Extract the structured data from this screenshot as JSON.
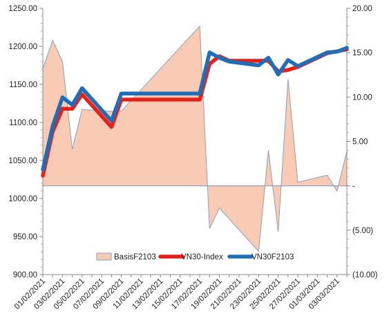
{
  "chart_data": {
    "type": "line",
    "title": "",
    "xlabel": "",
    "ylabel": "",
    "x": [
      "01/02/2021",
      "02/02/2021",
      "03/02/2021",
      "04/02/2021",
      "05/02/2021",
      "06/02/2021",
      "07/02/2021",
      "08/02/2021",
      "09/02/2021",
      "10/02/2021",
      "11/02/2021",
      "12/02/2021",
      "13/02/2021",
      "14/02/2021",
      "15/02/2021",
      "16/02/2021",
      "17/02/2021",
      "18/02/2021",
      "19/02/2021",
      "20/02/2021",
      "21/02/2021",
      "22/02/2021",
      "23/02/2021",
      "24/02/2021",
      "25/02/2021",
      "26/02/2021",
      "27/02/2021",
      "28/02/2021",
      "01/03/2021",
      "02/03/2021",
      "03/03/2021"
    ],
    "x_tick_labels": [
      "01/02/2021",
      "03/02/2021",
      "05/02/2021",
      "07/02/2021",
      "09/02/2021",
      "11/02/2021",
      "13/02/2021",
      "15/02/2021",
      "17/02/2021",
      "19/02/2021",
      "21/02/2021",
      "23/02/2021",
      "25/02/2021",
      "27/02/2021",
      "01/03/2021",
      "03/03/2021"
    ],
    "y_left": {
      "ylim": [
        900,
        1250
      ],
      "ticks": [
        "1250.00",
        "1200.00",
        "1150.00",
        "1100.00",
        "1050.00",
        "1000.00",
        "950.00",
        "900.00"
      ],
      "tick_values": [
        1250,
        1200,
        1150,
        1100,
        1050,
        1000,
        950,
        900
      ]
    },
    "y_right": {
      "ylim": [
        -10,
        20
      ],
      "ticks": [
        "20.00",
        "15.00",
        "10.00",
        "5.00",
        "-",
        "(5.00)",
        "(10.00)"
      ],
      "tick_values": [
        20,
        15,
        10,
        5,
        0,
        -5,
        -10
      ]
    },
    "legend_position": "bottom-center",
    "series": [
      {
        "name": "BasisF2103",
        "type": "area",
        "axis": "right",
        "color": "#f9cbb4",
        "stroke": "#8e9db8",
        "points": [
          {
            "x": "01/02/2021",
            "y": 13.2
          },
          {
            "x": "02/02/2021",
            "y": 16.4
          },
          {
            "x": "03/02/2021",
            "y": 14.0
          },
          {
            "x": "04/02/2021",
            "y": 4.1
          },
          {
            "x": "05/02/2021",
            "y": 8.6
          },
          {
            "x": "08/02/2021",
            "y": 8.4
          },
          {
            "x": "09/02/2021",
            "y": 8.4
          },
          {
            "x": "17/02/2021",
            "y": 18.0
          },
          {
            "x": "18/02/2021",
            "y": -4.8
          },
          {
            "x": "19/02/2021",
            "y": -2.5
          },
          {
            "x": "23/02/2021",
            "y": -7.4
          },
          {
            "x": "24/02/2021",
            "y": 4.0
          },
          {
            "x": "25/02/2021",
            "y": -5.2
          },
          {
            "x": "26/02/2021",
            "y": 12.0
          },
          {
            "x": "27/02/2021",
            "y": 0.4
          },
          {
            "x": "02/03/2021",
            "y": 1.2
          },
          {
            "x": "03/03/2021",
            "y": -0.6
          },
          {
            "x": "04/03/2021",
            "y": 3.9
          }
        ]
      },
      {
        "name": "VN30-Index",
        "type": "line",
        "axis": "left",
        "color": "#e8201b",
        "points": [
          {
            "x": "01/02/2021",
            "y": 1030
          },
          {
            "x": "02/02/2021",
            "y": 1088
          },
          {
            "x": "03/02/2021",
            "y": 1118
          },
          {
            "x": "04/02/2021",
            "y": 1118
          },
          {
            "x": "05/02/2021",
            "y": 1137
          },
          {
            "x": "08/02/2021",
            "y": 1094
          },
          {
            "x": "09/02/2021",
            "y": 1130
          },
          {
            "x": "17/02/2021",
            "y": 1130
          },
          {
            "x": "18/02/2021",
            "y": 1177
          },
          {
            "x": "19/02/2021",
            "y": 1187
          },
          {
            "x": "20/02/2021",
            "y": 1181
          },
          {
            "x": "24/02/2021",
            "y": 1181
          },
          {
            "x": "25/02/2021",
            "y": 1167
          },
          {
            "x": "26/02/2021",
            "y": 1169
          },
          {
            "x": "27/02/2021",
            "y": 1173
          },
          {
            "x": "02/03/2021",
            "y": 1191
          },
          {
            "x": "04/03/2021",
            "y": 1196
          }
        ]
      },
      {
        "name": "VN30F2103",
        "type": "line",
        "axis": "left",
        "color": "#1f6fb8",
        "points": [
          {
            "x": "01/02/2021",
            "y": 1038
          },
          {
            "x": "02/02/2021",
            "y": 1095
          },
          {
            "x": "03/02/2021",
            "y": 1133
          },
          {
            "x": "04/02/2021",
            "y": 1123
          },
          {
            "x": "05/02/2021",
            "y": 1145
          },
          {
            "x": "08/02/2021",
            "y": 1102
          },
          {
            "x": "09/02/2021",
            "y": 1138
          },
          {
            "x": "17/02/2021",
            "y": 1138
          },
          {
            "x": "18/02/2021",
            "y": 1192
          },
          {
            "x": "19/02/2021",
            "y": 1185
          },
          {
            "x": "20/02/2021",
            "y": 1180
          },
          {
            "x": "23/02/2021",
            "y": 1175
          },
          {
            "x": "24/02/2021",
            "y": 1185
          },
          {
            "x": "25/02/2021",
            "y": 1163
          },
          {
            "x": "26/02/2021",
            "y": 1182
          },
          {
            "x": "27/02/2021",
            "y": 1174
          },
          {
            "x": "02/03/2021",
            "y": 1192
          },
          {
            "x": "03/03/2021",
            "y": 1193
          },
          {
            "x": "04/03/2021",
            "y": 1198
          }
        ]
      }
    ]
  }
}
